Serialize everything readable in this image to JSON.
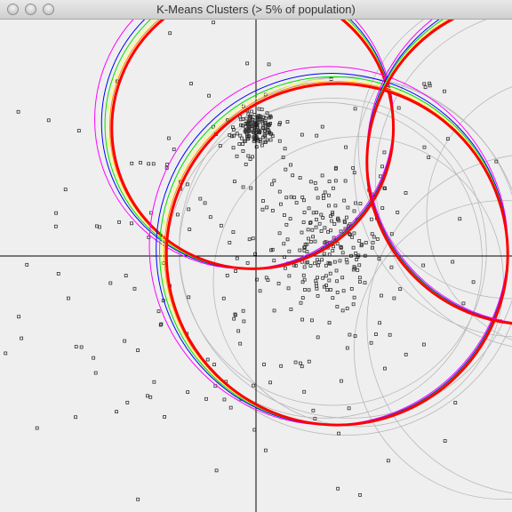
{
  "window": {
    "title": "K-Means Clusters (> 5% of population)"
  },
  "chart_data": {
    "type": "scatter",
    "title": "K-Means Clusters (> 5% of population)",
    "xlabel": "",
    "ylabel": "",
    "xlim": [
      -2.9,
      2.9
    ],
    "ylim": [
      -2.9,
      2.9
    ],
    "axes": "crosshair at origin",
    "grid": false,
    "colors": {
      "points": "#333333",
      "axes": "#000000",
      "ring_outer": "#ff00ff",
      "ring_2": "#0000ff",
      "ring_3": "#00dd00",
      "ring_4": "#ffff66",
      "ring_5": "#ff8800",
      "ring_final": "#ff0000",
      "history": "#b8b8b8"
    },
    "clusters": [
      {
        "center": [
          -0.04,
          1.5
        ],
        "radius": 1.65
      },
      {
        "center": [
          0.95,
          0.02
        ],
        "radius": 2.0
      },
      {
        "center": [
          3.2,
          1.1
        ],
        "radius": 1.9
      }
    ],
    "dense_blob": {
      "center": [
        0.0,
        1.5
      ],
      "spread": 0.13,
      "count": 160
    },
    "mid_cloud": {
      "center": [
        0.85,
        0.1
      ],
      "spread": 0.4,
      "count": 180
    },
    "scatter_points": {
      "spread": 1.35,
      "count": 230
    }
  }
}
